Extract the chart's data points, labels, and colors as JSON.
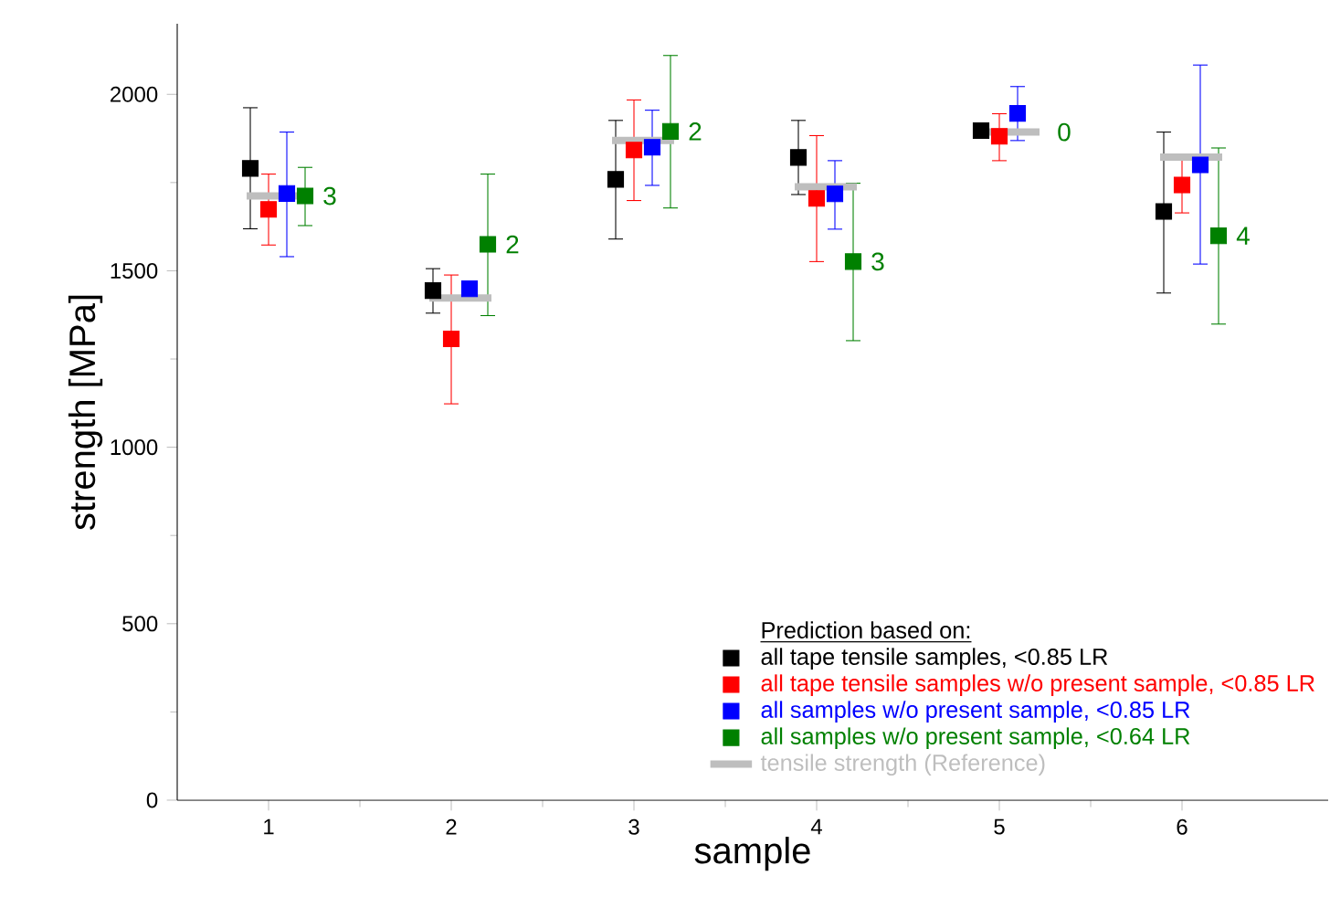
{
  "chart_data": {
    "type": "scatter",
    "xlabel": "sample",
    "ylabel": "strength [MPa]",
    "legend_title": "Prediction based on:",
    "xlim": [
      0.5,
      6.8
    ],
    "xticks": [
      1,
      2,
      3,
      4,
      5,
      6
    ],
    "ylim": [
      0,
      2200
    ],
    "yticks": [
      0,
      500,
      1000,
      1500,
      2000
    ],
    "marker": "square",
    "grid": false,
    "legend": "bottom right",
    "series": [
      {
        "name": "all tape tensile samples, <0.85 LR",
        "color": "#000000",
        "x": [
          0.9,
          1.9,
          2.9,
          3.9,
          4.9,
          5.9
        ],
        "values": [
          1790,
          1444,
          1759,
          1821,
          1897,
          1668
        ],
        "errors": [
          [
            1619,
            1962
          ],
          [
            1380,
            1506
          ],
          [
            1590,
            1926
          ],
          [
            1716,
            1926
          ],
          null,
          [
            1437,
            1893
          ]
        ]
      },
      {
        "name": "all tape tensile samples w/o present sample, <0.85 LR",
        "color": "#ff0000",
        "x": [
          1.0,
          2.0,
          3.0,
          4.0,
          5.0,
          6.0
        ],
        "values": [
          1674,
          1307,
          1842,
          1705,
          1881,
          1743
        ],
        "errors": [
          [
            1573,
            1774
          ],
          [
            1123,
            1488
          ],
          [
            1699,
            1984
          ],
          [
            1526,
            1883
          ],
          [
            1812,
            1945
          ],
          [
            1664,
            1821
          ]
        ]
      },
      {
        "name": "all samples w/o present sample, <0.85 LR",
        "color": "#0000ff",
        "x": [
          1.1,
          2.1,
          3.1,
          4.1,
          5.1,
          6.1
        ],
        "values": [
          1719,
          1449,
          1850,
          1718,
          1946,
          1800
        ],
        "errors": [
          [
            1540,
            1893
          ],
          null,
          [
            1742,
            1955
          ],
          [
            1618,
            1812
          ],
          [
            1869,
            2022
          ],
          [
            1519,
            2083
          ]
        ]
      },
      {
        "name": "all samples w/o present sample, <0.64 LR",
        "color": "#008000",
        "x": [
          1.2,
          2.2,
          3.2,
          4.2,
          5.2,
          6.2
        ],
        "values": [
          1712,
          1575,
          1895,
          1526,
          null,
          1599
        ],
        "errors": [
          [
            1628,
            1793
          ],
          [
            1373,
            1774
          ],
          [
            1678,
            2110
          ],
          [
            1302,
            1748
          ],
          null,
          [
            1349,
            1848
          ]
        ]
      },
      {
        "name": "tensile strength (Reference)",
        "type": "line",
        "marker": "none",
        "line_style": "solid",
        "color": "#bebebe",
        "x": [
          0.88,
          1.22,
          1.5,
          1.88,
          2.22,
          2.5,
          2.88,
          3.22,
          3.5,
          3.88,
          4.22,
          4.5,
          4.88,
          5.22,
          5.5,
          5.88,
          6.22
        ],
        "values": [
          1712,
          1712,
          null,
          1423,
          1423,
          null,
          1869,
          1869,
          null,
          1738,
          1738,
          null,
          1893,
          1893,
          null,
          1822,
          1822
        ]
      }
    ],
    "annotations": [
      {
        "text": "3",
        "x": 1.2,
        "y": 1712
      },
      {
        "text": "2",
        "x": 2.2,
        "y": 1575
      },
      {
        "text": "2",
        "x": 3.2,
        "y": 1895
      },
      {
        "text": "3",
        "x": 4.2,
        "y": 1526
      },
      {
        "text": "0",
        "x": 5.22,
        "y": 1893
      },
      {
        "text": "4",
        "x": 6.2,
        "y": 1599
      }
    ]
  }
}
